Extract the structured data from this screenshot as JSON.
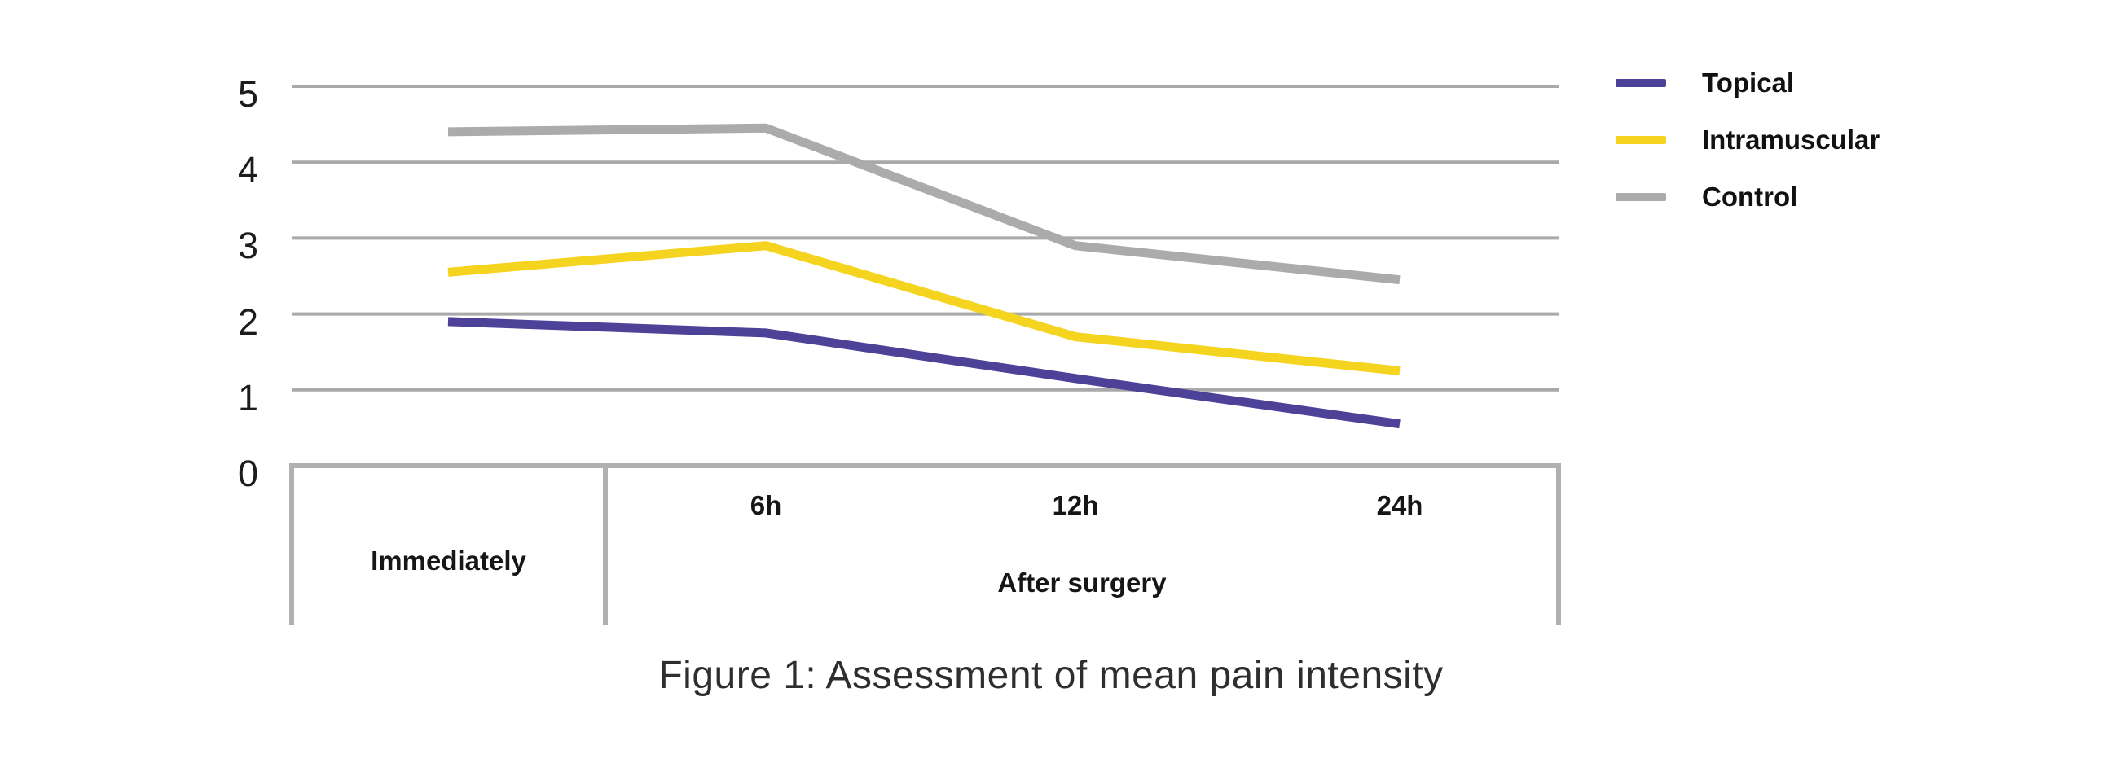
{
  "figure": {
    "caption": "Figure 1: Assessment of mean pain intensity"
  },
  "chart_data": {
    "type": "line",
    "title": "Figure 1: Assessment of mean pain intensity",
    "xlabel": "",
    "ylabel": "",
    "categories": [
      "Immediately",
      "6h",
      "12h",
      "24h"
    ],
    "x_axis": {
      "tick_labels": [
        "6h",
        "12h",
        "24h"
      ],
      "group_labels": [
        "Immediately",
        "After surgery"
      ]
    },
    "series": [
      {
        "name": "Topical",
        "color": "#4d4198",
        "values": [
          1.9,
          1.75,
          1.15,
          0.55
        ]
      },
      {
        "name": "Intramuscular",
        "color": "#f5d41f",
        "values": [
          2.55,
          2.9,
          1.7,
          1.25
        ]
      },
      {
        "name": "Control",
        "color": "#ababab",
        "values": [
          4.4,
          4.45,
          2.9,
          2.45
        ]
      }
    ],
    "ylim": [
      0,
      5
    ],
    "yticks": [
      0,
      1,
      2,
      3,
      4,
      5
    ],
    "grid": true,
    "legend_position": "top-right",
    "colors": {
      "gridline": "#a9a9a9",
      "axis_frame": "#b0b0b0",
      "text": "#1a1a1a",
      "background": "#ffffff"
    }
  }
}
